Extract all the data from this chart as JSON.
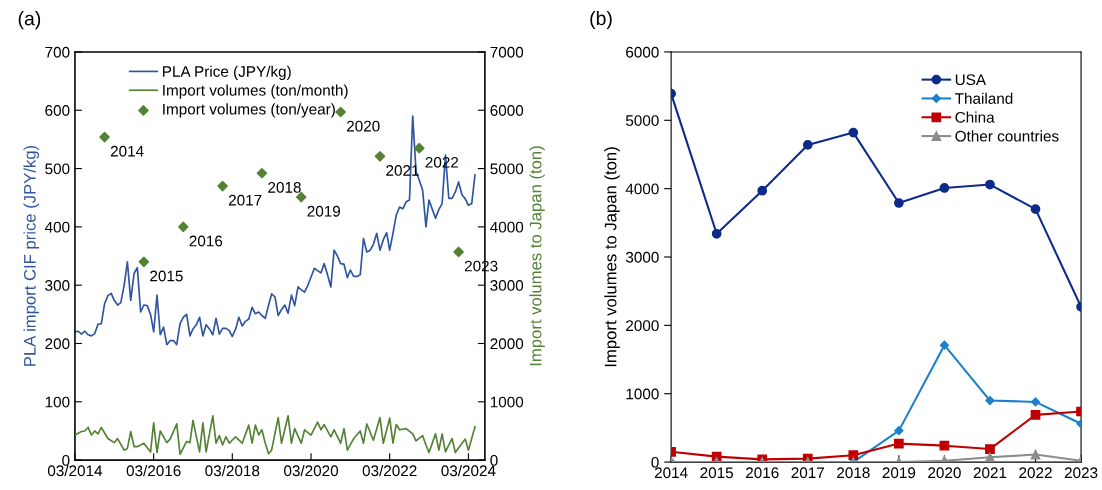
{
  "chart_data": [
    {
      "type": "line",
      "title": "(a)",
      "ylabel": "PLA import CIF price (JPY/kg)",
      "y2label": "Import volumes to Japan (ton)",
      "legend": "top left",
      "grid": false,
      "xlim": [
        "2014-03",
        "2024-08"
      ],
      "xticks": [
        {
          "value": "2014-03",
          "label": "03/2014"
        },
        {
          "value": "2016-03",
          "label": "03/2016"
        },
        {
          "value": "2018-03",
          "label": "03/2018"
        },
        {
          "value": "2020-03",
          "label": "03/2020"
        },
        {
          "value": "2022-03",
          "label": "03/2022"
        },
        {
          "value": "2024-03",
          "label": "03/2024"
        }
      ],
      "ylim": [
        0,
        700
      ],
      "yticks": [
        0,
        100,
        200,
        300,
        400,
        500,
        600,
        700
      ],
      "y2lim": [
        0,
        7000
      ],
      "y2ticks": [
        0,
        1000,
        2000,
        3000,
        4000,
        5000,
        6000,
        7000
      ],
      "series": [
        {
          "name": "PLA Price (JPY/kg)",
          "type": "line",
          "color": "#2f55a0",
          "x": [
            "2014-03",
            "2014-04",
            "2014-05",
            "2014-06",
            "2014-07",
            "2014-08",
            "2014-09",
            "2014-10",
            "2014-11",
            "2014-12",
            "2015-01",
            "2015-02",
            "2015-03",
            "2015-04",
            "2015-05",
            "2015-06",
            "2015-07",
            "2015-08",
            "2015-09",
            "2015-10",
            "2015-11",
            "2015-12",
            "2016-01",
            "2016-02",
            "2016-03",
            "2016-04",
            "2016-05",
            "2016-06",
            "2016-07",
            "2016-08",
            "2016-09",
            "2016-10",
            "2016-11",
            "2016-12",
            "2017-01",
            "2017-02",
            "2017-03",
            "2017-04",
            "2017-05",
            "2017-06",
            "2017-07",
            "2017-08",
            "2017-09",
            "2017-10",
            "2017-11",
            "2017-12",
            "2018-01",
            "2018-02",
            "2018-03",
            "2018-04",
            "2018-05",
            "2018-06",
            "2018-07",
            "2018-08",
            "2018-09",
            "2018-10",
            "2018-11",
            "2018-12",
            "2019-01",
            "2019-02",
            "2019-03",
            "2019-04",
            "2019-05",
            "2019-06",
            "2019-07",
            "2019-08",
            "2019-09",
            "2019-10",
            "2019-11",
            "2019-12",
            "2020-01",
            "2020-02",
            "2020-03",
            "2020-04",
            "2020-05",
            "2020-06",
            "2020-07",
            "2020-08",
            "2020-09",
            "2020-10",
            "2020-11",
            "2020-12",
            "2021-01",
            "2021-02",
            "2021-03",
            "2021-04",
            "2021-05",
            "2021-06",
            "2021-07",
            "2021-08",
            "2021-09",
            "2021-10",
            "2021-11",
            "2021-12",
            "2022-01",
            "2022-02",
            "2022-03",
            "2022-04",
            "2022-05",
            "2022-06",
            "2022-07",
            "2022-08",
            "2022-09",
            "2022-10",
            "2022-11",
            "2022-12",
            "2023-01",
            "2023-02",
            "2023-03",
            "2023-04",
            "2023-05",
            "2023-06",
            "2023-07",
            "2023-08",
            "2023-09",
            "2023-10",
            "2023-11",
            "2023-12",
            "2024-01",
            "2024-02",
            "2024-03",
            "2024-04",
            "2024-05"
          ],
          "values": [
            220,
            221,
            216,
            221,
            215,
            213,
            217,
            233,
            234,
            268,
            282,
            286,
            274,
            266,
            270,
            300,
            340,
            274,
            320,
            330,
            254,
            266,
            265,
            250,
            220,
            283,
            215,
            228,
            198,
            205,
            205,
            198,
            234,
            245,
            250,
            213,
            225,
            232,
            245,
            213,
            232,
            225,
            215,
            243,
            216,
            226,
            226,
            222,
            212,
            225,
            245,
            230,
            238,
            242,
            262,
            251,
            254,
            248,
            243,
            266,
            285,
            280,
            248,
            258,
            266,
            252,
            283,
            265,
            297,
            292,
            288,
            300,
            314,
            329,
            325,
            321,
            337,
            318,
            297,
            360,
            350,
            337,
            336,
            313,
            326,
            315,
            315,
            318,
            380,
            357,
            360,
            370,
            389,
            360,
            378,
            390,
            360,
            389,
            420,
            434,
            431,
            443,
            446,
            590,
            495,
            480,
            463,
            400,
            446,
            430,
            415,
            430,
            440,
            523,
            449,
            449,
            460,
            477,
            455,
            448,
            437,
            440,
            489
          ]
        },
        {
          "name": "Import volumes (ton/month)",
          "type": "line",
          "axis": "y2",
          "color": "#548235",
          "x": [
            "2014-03",
            "2014-05",
            "2014-06",
            "2014-07",
            "2014-08",
            "2014-09",
            "2014-10",
            "2014-11",
            "2015-01",
            "2015-03",
            "2015-04",
            "2015-06",
            "2015-07",
            "2015-08",
            "2015-09",
            "2015-10",
            "2015-12",
            "2016-02",
            "2016-03",
            "2016-04",
            "2016-05",
            "2016-07",
            "2016-08",
            "2016-10",
            "2016-11",
            "2017-01",
            "2017-02",
            "2017-03",
            "2017-05",
            "2017-06",
            "2017-07",
            "2017-09",
            "2017-10",
            "2017-11",
            "2017-12",
            "2018-01",
            "2018-02",
            "2018-04",
            "2018-06",
            "2018-08",
            "2018-09",
            "2018-10",
            "2018-11",
            "2018-12",
            "2019-01",
            "2019-02",
            "2019-03",
            "2019-05",
            "2019-06",
            "2019-08",
            "2019-09",
            "2019-10",
            "2019-12",
            "2020-01",
            "2020-03",
            "2020-05",
            "2020-06",
            "2020-07",
            "2020-09",
            "2020-10",
            "2020-12",
            "2021-01",
            "2021-02",
            "2021-04",
            "2021-06",
            "2021-07",
            "2021-08",
            "2021-10",
            "2021-12",
            "2022-01",
            "2022-03",
            "2022-04",
            "2022-05",
            "2022-06",
            "2022-08",
            "2022-10",
            "2022-11",
            "2023-01",
            "2023-02",
            "2023-03",
            "2023-05",
            "2023-06",
            "2023-07",
            "2023-08",
            "2023-10",
            "2023-11",
            "2024-01",
            "2024-02",
            "2024-03",
            "2024-05"
          ],
          "values": [
            430,
            490,
            500,
            560,
            430,
            500,
            450,
            560,
            370,
            300,
            370,
            170,
            200,
            490,
            230,
            230,
            290,
            140,
            640,
            130,
            500,
            300,
            360,
            620,
            100,
            320,
            300,
            680,
            140,
            640,
            140,
            760,
            290,
            420,
            260,
            400,
            290,
            400,
            290,
            600,
            290,
            600,
            430,
            520,
            290,
            110,
            170,
            730,
            290,
            760,
            290,
            540,
            290,
            520,
            430,
            650,
            520,
            610,
            400,
            520,
            290,
            540,
            170,
            370,
            500,
            290,
            620,
            340,
            730,
            290,
            720,
            290,
            610,
            520,
            540,
            450,
            330,
            420,
            260,
            130,
            450,
            170,
            450,
            140,
            370,
            130,
            290,
            360,
            170,
            570
          ]
        },
        {
          "name": "Import volumes (ton/year)",
          "type": "scatter",
          "axis": "y2",
          "marker": "diamond",
          "color": "#548235",
          "x": [
            "2014-12",
            "2015-12",
            "2016-12",
            "2017-12",
            "2018-12",
            "2019-12",
            "2020-12",
            "2021-12",
            "2022-12",
            "2023-12"
          ],
          "values": [
            5540,
            3400,
            4000,
            4700,
            4920,
            4510,
            5970,
            5210,
            5350,
            3570
          ]
        }
      ],
      "annotations": [
        {
          "text": "2014",
          "x": "2014-12",
          "y": 554
        },
        {
          "text": "2015",
          "x": "2015-12",
          "y": 340
        },
        {
          "text": "2016",
          "x": "2016-12",
          "y": 400
        },
        {
          "text": "2017",
          "x": "2017-12",
          "y": 470
        },
        {
          "text": "2018",
          "x": "2018-12",
          "y": 492
        },
        {
          "text": "2019",
          "x": "2019-12",
          "y": 451
        },
        {
          "text": "2020",
          "x": "2020-12",
          "y": 597
        },
        {
          "text": "2021",
          "x": "2021-12",
          "y": 521
        },
        {
          "text": "2022",
          "x": "2022-12",
          "y": 535
        },
        {
          "text": "2023",
          "x": "2023-12",
          "y": 357
        }
      ]
    },
    {
      "type": "line",
      "title": "(b)",
      "ylabel": "Import volumes to Japan (ton)",
      "legend": "top right",
      "grid": false,
      "categories": [
        "2014",
        "2015",
        "2016",
        "2017",
        "2018",
        "2019",
        "2020",
        "2021",
        "2022",
        "2023"
      ],
      "ylim": [
        0,
        6000
      ],
      "yticks": [
        0,
        1000,
        2000,
        3000,
        4000,
        5000,
        6000
      ],
      "series": [
        {
          "name": "USA",
          "color": "#0d2c8a",
          "marker": "circle",
          "values": [
            5390,
            3340,
            3970,
            4640,
            4820,
            3790,
            4010,
            4060,
            3700,
            2270
          ]
        },
        {
          "name": "Thailand",
          "color": "#1b80cc",
          "marker": "diamond",
          "values": [
            0,
            0,
            0,
            0,
            0,
            460,
            1710,
            900,
            880,
            560
          ]
        },
        {
          "name": "China",
          "color": "#c00000",
          "marker": "square",
          "values": [
            150,
            80,
            40,
            50,
            100,
            270,
            240,
            190,
            690,
            740
          ]
        },
        {
          "name": "Other countries",
          "color": "#8c8c8c",
          "marker": "triangle",
          "values": [
            0,
            0,
            0,
            0,
            0,
            0,
            20,
            70,
            110,
            20
          ]
        }
      ]
    }
  ]
}
